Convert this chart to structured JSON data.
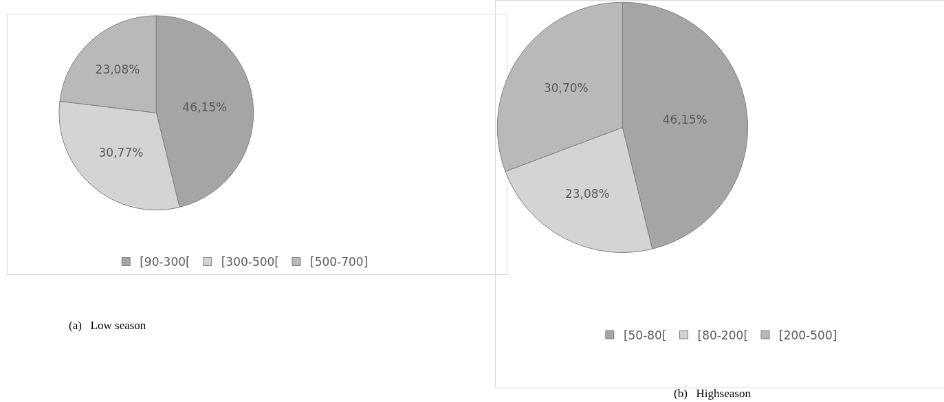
{
  "chart_data": [
    {
      "type": "pie",
      "title": "(a)   Low season",
      "categories": [
        "[90-300[",
        "[300-500[",
        "[500-700]"
      ],
      "values": [
        46.15,
        30.77,
        23.08
      ],
      "colors": [
        "#a5a5a5",
        "#d4d4d4",
        "#b9b9b9"
      ],
      "value_labels": [
        "46,15%",
        "30,77%",
        "23,08%"
      ],
      "legend": "bottom"
    },
    {
      "type": "pie",
      "title": "(b)   Highseason",
      "categories": [
        "[50-80[",
        "[80-200[",
        "[200-500]"
      ],
      "values": [
        46.15,
        23.08,
        30.7
      ],
      "colors": [
        "#a5a5a5",
        "#d4d4d4",
        "#b9b9b9"
      ],
      "value_labels": [
        "46,15%",
        "23,08%",
        "30,70%"
      ],
      "legend": "bottom"
    }
  ]
}
